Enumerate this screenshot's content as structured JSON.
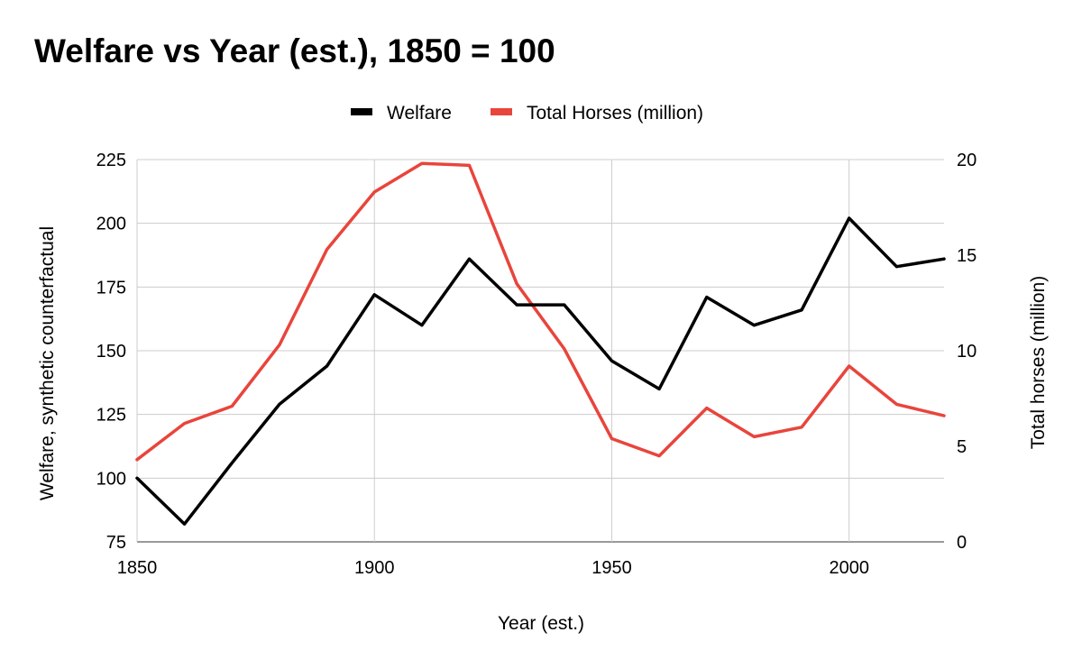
{
  "chart_data": {
    "type": "line",
    "title": "Welfare vs Year (est.), 1850 = 100",
    "xlabel": "Year (est.)",
    "ylabel_left": "Welfare, synthetic counterfactual",
    "ylabel_right": "Total horses (million)",
    "xlim": [
      1850,
      2020
    ],
    "ylim_left": [
      75,
      225
    ],
    "ylim_right": [
      0,
      20
    ],
    "x_ticks": [
      1850,
      1900,
      1950,
      2000
    ],
    "y_ticks_left": [
      75,
      100,
      125,
      150,
      175,
      200,
      225
    ],
    "y_ticks_right": [
      0,
      5,
      10,
      15,
      20
    ],
    "grid": true,
    "legend_position": "top-center",
    "x": [
      1850,
      1860,
      1870,
      1880,
      1890,
      1900,
      1910,
      1920,
      1930,
      1940,
      1950,
      1960,
      1970,
      1980,
      1990,
      2000,
      2010,
      2020
    ],
    "series": [
      {
        "name": "Welfare",
        "axis": "left",
        "color": "#000000",
        "values": [
          100,
          82,
          106,
          129,
          144,
          172,
          160,
          186,
          168,
          168,
          146,
          135,
          171,
          160,
          166,
          202,
          183,
          186
        ]
      },
      {
        "name": "Total Horses (million)",
        "axis": "right",
        "color": "#e8453c",
        "values": [
          4.3,
          6.2,
          7.1,
          10.3,
          15.3,
          18.3,
          19.8,
          19.7,
          13.5,
          10.1,
          5.4,
          4.5,
          7.0,
          5.5,
          6.0,
          9.2,
          7.2,
          6.6
        ]
      }
    ]
  }
}
